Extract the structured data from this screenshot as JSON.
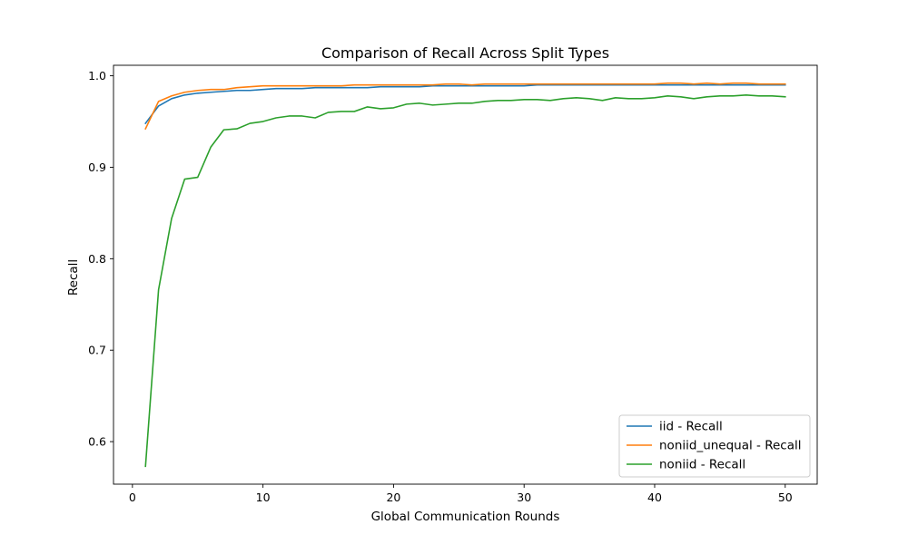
{
  "chart_data": {
    "type": "line",
    "title": "Comparison of Recall Across Split Types",
    "xlabel": "Global Communication Rounds",
    "ylabel": "Recall",
    "xlim": [
      -1.45,
      52.45
    ],
    "ylim": [
      0.5535,
      1.0115
    ],
    "xticks": [
      0,
      10,
      20,
      30,
      40,
      50
    ],
    "yticks": [
      0.6,
      0.7,
      0.8,
      0.9,
      1.0
    ],
    "xtick_labels": [
      "0",
      "10",
      "20",
      "30",
      "40",
      "50"
    ],
    "ytick_labels": [
      "0.6",
      "0.7",
      "0.8",
      "0.9",
      "1.0"
    ],
    "grid": false,
    "legend_position": "lower-right",
    "x": [
      1,
      2,
      3,
      4,
      5,
      6,
      7,
      8,
      9,
      10,
      11,
      12,
      13,
      14,
      15,
      16,
      17,
      18,
      19,
      20,
      21,
      22,
      23,
      24,
      25,
      26,
      27,
      28,
      29,
      30,
      31,
      32,
      33,
      34,
      35,
      36,
      37,
      38,
      39,
      40,
      41,
      42,
      43,
      44,
      45,
      46,
      47,
      48,
      49,
      50
    ],
    "series": [
      {
        "name": "iid - Recall",
        "color": "#1f77b4",
        "values": [
          0.948,
          0.967,
          0.975,
          0.979,
          0.981,
          0.982,
          0.983,
          0.984,
          0.984,
          0.985,
          0.986,
          0.986,
          0.986,
          0.987,
          0.987,
          0.987,
          0.987,
          0.987,
          0.988,
          0.988,
          0.988,
          0.988,
          0.989,
          0.989,
          0.989,
          0.989,
          0.989,
          0.989,
          0.989,
          0.989,
          0.99,
          0.99,
          0.99,
          0.99,
          0.99,
          0.99,
          0.99,
          0.99,
          0.99,
          0.99,
          0.99,
          0.99,
          0.99,
          0.99,
          0.99,
          0.99,
          0.99,
          0.99,
          0.99,
          0.99
        ]
      },
      {
        "name": "noniid_unequal - Recall",
        "color": "#ff7f0e",
        "values": [
          0.942,
          0.972,
          0.978,
          0.982,
          0.984,
          0.985,
          0.985,
          0.987,
          0.988,
          0.989,
          0.989,
          0.989,
          0.989,
          0.989,
          0.989,
          0.989,
          0.99,
          0.99,
          0.99,
          0.99,
          0.99,
          0.99,
          0.99,
          0.991,
          0.991,
          0.99,
          0.991,
          0.991,
          0.991,
          0.991,
          0.991,
          0.991,
          0.991,
          0.991,
          0.991,
          0.991,
          0.991,
          0.991,
          0.991,
          0.991,
          0.992,
          0.992,
          0.991,
          0.992,
          0.991,
          0.992,
          0.992,
          0.991,
          0.991,
          0.991
        ]
      },
      {
        "name": "noniid - Recall",
        "color": "#2ca02c",
        "values": [
          0.573,
          0.766,
          0.844,
          0.887,
          0.889,
          0.922,
          0.941,
          0.942,
          0.948,
          0.95,
          0.954,
          0.956,
          0.956,
          0.954,
          0.96,
          0.961,
          0.961,
          0.966,
          0.964,
          0.965,
          0.969,
          0.97,
          0.968,
          0.969,
          0.97,
          0.97,
          0.972,
          0.973,
          0.973,
          0.974,
          0.974,
          0.973,
          0.975,
          0.976,
          0.975,
          0.973,
          0.976,
          0.975,
          0.975,
          0.976,
          0.978,
          0.977,
          0.975,
          0.977,
          0.978,
          0.978,
          0.979,
          0.978,
          0.978,
          0.977
        ]
      }
    ]
  }
}
